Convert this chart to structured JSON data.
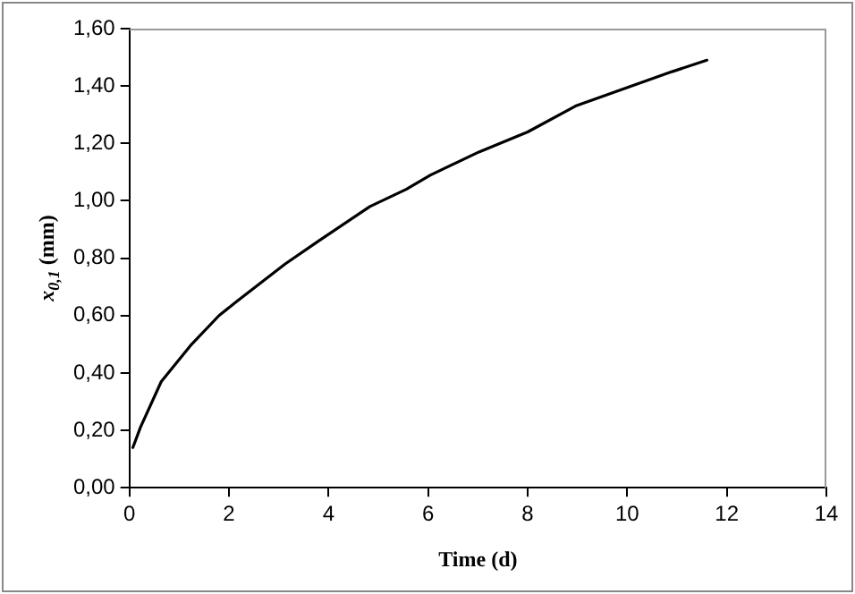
{
  "chart_data": {
    "type": "line",
    "xlabel": "Time (d)",
    "ylabel": "x$_{0,1}$ (mm)",
    "x": [
      0.07,
      0.22,
      0.64,
      1.25,
      1.8,
      2.16,
      3.13,
      3.8,
      4.83,
      5.56,
      6.05,
      7.02,
      8.0,
      8.96,
      9.93,
      10.9,
      11.6
    ],
    "series": [
      {
        "color": "#000000",
        "values": [
          0.14,
          0.21,
          0.37,
          0.5,
          0.6,
          0.65,
          0.78,
          0.86,
          0.98,
          1.04,
          1.09,
          1.17,
          1.24,
          1.33,
          1.39,
          1.45,
          1.49
        ]
      }
    ],
    "xlim": [
      0,
      14
    ],
    "xticks": [
      0,
      2,
      4,
      6,
      8,
      10,
      12,
      14
    ],
    "ylim": [
      0,
      1.6
    ],
    "yticks": [
      {
        "value": 0,
        "label": "0,00"
      },
      {
        "value": 0.2,
        "label": "0,20"
      },
      {
        "value": 0.4,
        "label": "0,40"
      },
      {
        "value": 0.6,
        "label": "0,60"
      },
      {
        "value": 0.8,
        "label": "0,80"
      },
      {
        "value": 1,
        "label": "1,00"
      },
      {
        "value": 1.2,
        "label": "1,20"
      },
      {
        "value": 1.4,
        "label": "1,40"
      },
      {
        "value": 1.6,
        "label": "1,60"
      }
    ],
    "grid": false,
    "legend": false,
    "marker": "none",
    "line_style": "solid"
  }
}
